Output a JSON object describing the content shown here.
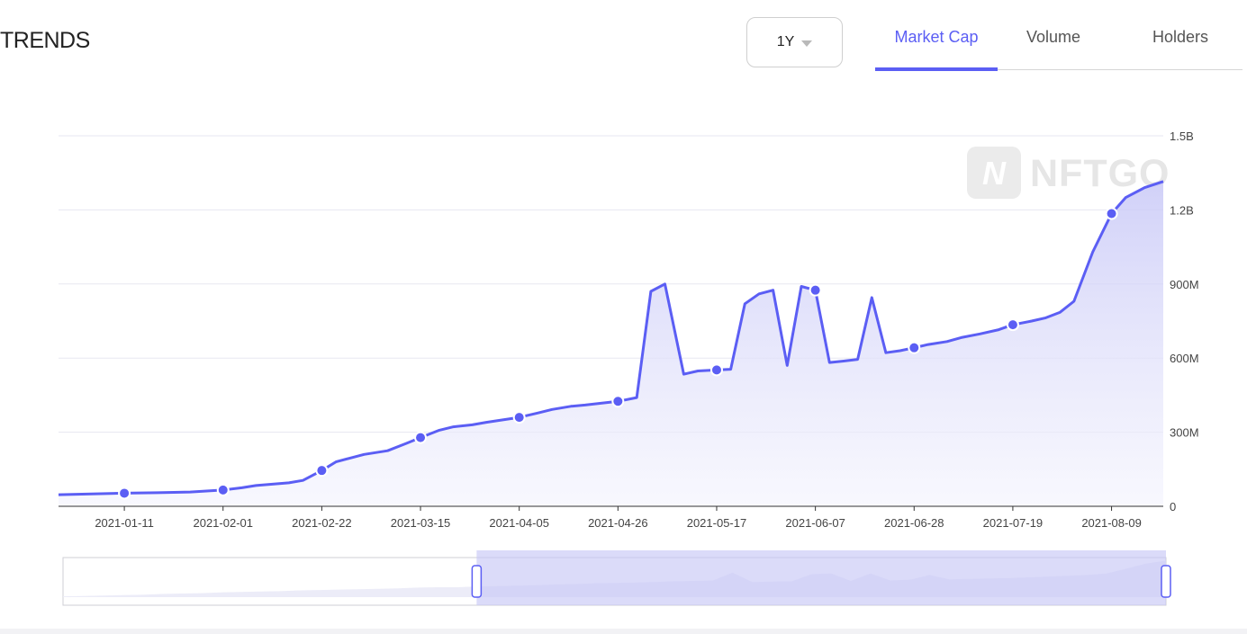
{
  "header": {
    "title": "TRENDS",
    "range_value": "1Y",
    "tabs": [
      {
        "label": "Market Cap",
        "active": true
      },
      {
        "label": "Volume",
        "active": false
      },
      {
        "label": "Holders",
        "active": false
      }
    ]
  },
  "watermark": "NFTGO",
  "colors": {
    "accent": "#5b5ef4",
    "area": "#dcdcfb",
    "grid": "#e5e5f0"
  },
  "chart_data": {
    "type": "area",
    "y_unit_labels": [
      "0",
      "300M",
      "600M",
      "900M",
      "1.2B",
      "1.5B"
    ],
    "yticks": [
      0,
      300000000,
      600000000,
      900000000,
      1200000000,
      1500000000
    ],
    "ylim": [
      0,
      1500000000
    ],
    "xlim": [
      "2020-12-28",
      "2021-08-20"
    ],
    "xtick_labels": [
      "2021-01-11",
      "2021-02-01",
      "2021-02-22",
      "2021-03-15",
      "2021-04-05",
      "2021-04-26",
      "2021-05-17",
      "2021-06-07",
      "2021-06-28",
      "2021-07-19",
      "2021-08-09"
    ],
    "grid": true,
    "legend": "none",
    "series": [
      {
        "points": [
          [
            "2020-12-28",
            47000000
          ],
          [
            "2021-01-04",
            50000000
          ],
          [
            "2021-01-11",
            53000000
          ],
          [
            "2021-01-18",
            55000000
          ],
          [
            "2021-01-25",
            58000000
          ],
          [
            "2021-02-01",
            66000000
          ],
          [
            "2021-02-05",
            75000000
          ],
          [
            "2021-02-08",
            84000000
          ],
          [
            "2021-02-15",
            95000000
          ],
          [
            "2021-02-18",
            105000000
          ],
          [
            "2021-02-22",
            145000000
          ],
          [
            "2021-02-25",
            180000000
          ],
          [
            "2021-02-28",
            195000000
          ],
          [
            "2021-03-03",
            210000000
          ],
          [
            "2021-03-08",
            225000000
          ],
          [
            "2021-03-12",
            255000000
          ],
          [
            "2021-03-15",
            278000000
          ],
          [
            "2021-03-19",
            308000000
          ],
          [
            "2021-03-22",
            322000000
          ],
          [
            "2021-03-26",
            330000000
          ],
          [
            "2021-03-29",
            340000000
          ],
          [
            "2021-04-05",
            360000000
          ],
          [
            "2021-04-09",
            378000000
          ],
          [
            "2021-04-12",
            392000000
          ],
          [
            "2021-04-16",
            405000000
          ],
          [
            "2021-04-19",
            410000000
          ],
          [
            "2021-04-26",
            425000000
          ],
          [
            "2021-04-30",
            440000000
          ],
          [
            "2021-05-03",
            870000000
          ],
          [
            "2021-05-06",
            900000000
          ],
          [
            "2021-05-10",
            535000000
          ],
          [
            "2021-05-13",
            548000000
          ],
          [
            "2021-05-17",
            552000000
          ],
          [
            "2021-05-20",
            555000000
          ],
          [
            "2021-05-23",
            820000000
          ],
          [
            "2021-05-26",
            860000000
          ],
          [
            "2021-05-29",
            875000000
          ],
          [
            "2021-06-01",
            570000000
          ],
          [
            "2021-06-04",
            890000000
          ],
          [
            "2021-06-07",
            875000000
          ],
          [
            "2021-06-10",
            582000000
          ],
          [
            "2021-06-13",
            588000000
          ],
          [
            "2021-06-16",
            595000000
          ],
          [
            "2021-06-19",
            845000000
          ],
          [
            "2021-06-22",
            622000000
          ],
          [
            "2021-06-25",
            630000000
          ],
          [
            "2021-06-28",
            642000000
          ],
          [
            "2021-07-01",
            655000000
          ],
          [
            "2021-07-05",
            667000000
          ],
          [
            "2021-07-08",
            683000000
          ],
          [
            "2021-07-12",
            698000000
          ],
          [
            "2021-07-16",
            715000000
          ],
          [
            "2021-07-19",
            735000000
          ],
          [
            "2021-07-23",
            750000000
          ],
          [
            "2021-07-26",
            763000000
          ],
          [
            "2021-07-29",
            785000000
          ],
          [
            "2021-08-01",
            830000000
          ],
          [
            "2021-08-05",
            1030000000
          ],
          [
            "2021-08-09",
            1185000000
          ],
          [
            "2021-08-12",
            1250000000
          ],
          [
            "2021-08-16",
            1290000000
          ],
          [
            "2021-08-20",
            1315000000
          ]
        ],
        "markers": [
          "2021-01-11",
          "2021-02-01",
          "2021-02-22",
          "2021-03-15",
          "2021-04-05",
          "2021-04-26",
          "2021-05-17",
          "2021-06-07",
          "2021-06-28",
          "2021-07-19",
          "2021-08-09"
        ]
      }
    ],
    "zoom_window": {
      "start_fraction": 0.375,
      "end_fraction": 1.0
    },
    "overview_points": [
      0.02,
      0.03,
      0.04,
      0.05,
      0.06,
      0.08,
      0.09,
      0.1,
      0.12,
      0.13,
      0.14,
      0.15,
      0.17,
      0.18,
      0.19,
      0.2,
      0.21,
      0.22,
      0.24,
      0.25,
      0.25,
      0.27,
      0.28,
      0.29,
      0.3,
      0.32,
      0.33,
      0.35,
      0.36,
      0.37,
      0.38,
      0.4,
      0.41,
      0.42,
      0.62,
      0.38,
      0.39,
      0.4,
      0.58,
      0.6,
      0.41,
      0.6,
      0.42,
      0.44,
      0.56,
      0.45,
      0.46,
      0.47,
      0.48,
      0.5,
      0.52,
      0.54,
      0.56,
      0.6,
      0.72,
      0.85,
      0.92
    ]
  }
}
